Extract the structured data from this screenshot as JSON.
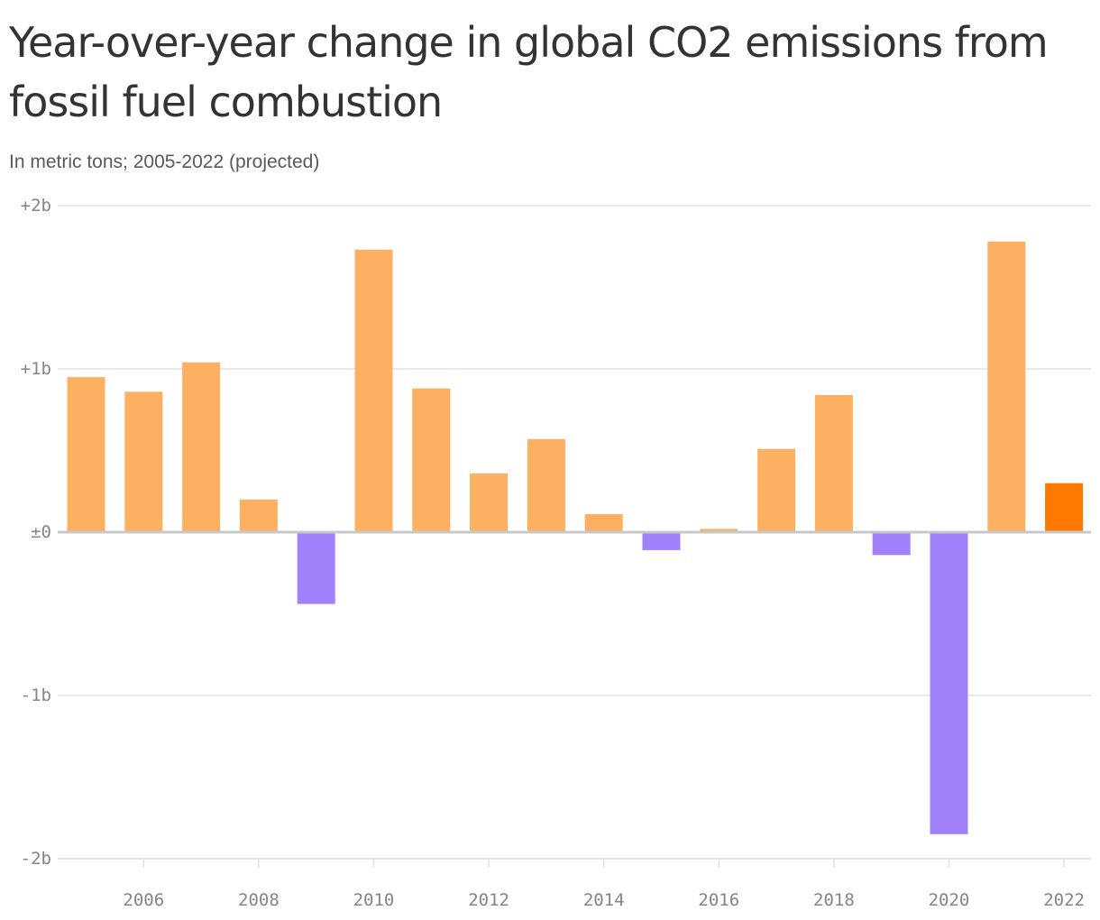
{
  "title": "Year-over-year change in global CO2 emissions from fossil fuel combustion",
  "subtitle": "In metric tons; 2005-2022 (projected)",
  "colors": {
    "increase": "#FDAF62",
    "decrease": "#A180FC",
    "projected": "#FF7800",
    "grid": "#E2E2E2",
    "baseline": "#C8C8C8",
    "text": "#333333"
  },
  "chart_data": {
    "type": "bar",
    "title": "Year-over-year change in global CO2 emissions from fossil fuel combustion",
    "subtitle": "In metric tons; 2005-2022 (projected)",
    "xlabel": "",
    "ylabel": "",
    "unit": "billion metric tons",
    "ylim": [
      -2,
      2
    ],
    "yticks": [
      {
        "value": 2,
        "label": "+2b"
      },
      {
        "value": 1,
        "label": "+1b"
      },
      {
        "value": 0,
        "label": "±0"
      },
      {
        "value": -1,
        "label": "-1b"
      },
      {
        "value": -2,
        "label": "-2b"
      }
    ],
    "xticks": [
      "2006",
      "2008",
      "2010",
      "2012",
      "2014",
      "2016",
      "2018",
      "2020",
      "2022"
    ],
    "categories": [
      2005,
      2006,
      2007,
      2008,
      2009,
      2010,
      2011,
      2012,
      2013,
      2014,
      2015,
      2016,
      2017,
      2018,
      2019,
      2020,
      2021,
      2022
    ],
    "values": [
      0.95,
      0.86,
      1.04,
      0.2,
      -0.44,
      1.73,
      0.88,
      0.36,
      0.57,
      0.11,
      -0.11,
      0.02,
      0.51,
      0.84,
      -0.14,
      -1.85,
      1.78,
      0.3
    ],
    "projected": [
      2022
    ],
    "grid": true
  }
}
